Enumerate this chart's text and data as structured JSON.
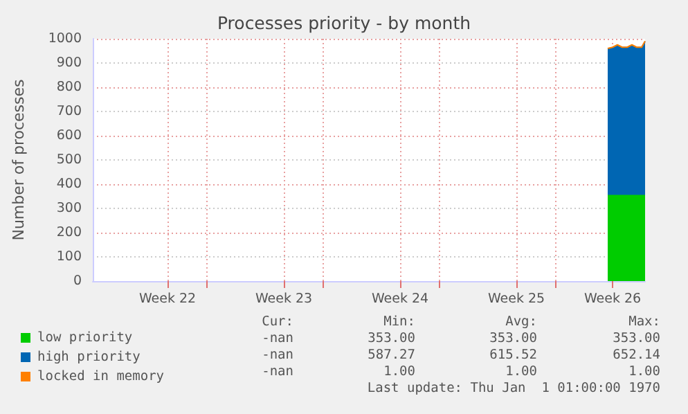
{
  "chart_data": {
    "type": "area",
    "stacked": true,
    "title": "Processes priority - by month",
    "ylabel": "Number of processes",
    "x": [
      "--06-27T04:00",
      "--06-27T11:00",
      "--06-27T18:00",
      "--06-28T01:00",
      "--06-28T08:00",
      "--06-28T15:00",
      "--06-28T22:00",
      "--06-29T05:00",
      "--06-29T10:00"
    ],
    "series": [
      {
        "name": "low priority",
        "color": "#00cc00",
        "values": [
          353,
          353,
          353,
          353,
          353,
          353,
          353,
          353,
          353
        ]
      },
      {
        "name": "high priority",
        "color": "#0066b3",
        "values": [
          606,
          611,
          621,
          611,
          611,
          621,
          611,
          611,
          636
        ]
      },
      {
        "name": "locked in memory",
        "color": "#ff8000",
        "values": [
          1,
          1,
          1,
          1,
          1,
          1,
          1,
          1,
          1
        ]
      }
    ],
    "xlim": [
      "--05-27T04:00",
      "--06-29T10:00"
    ],
    "xticks": [
      {
        "value": "--05-31T16:00",
        "label": "Week 22"
      },
      {
        "value": "--06-03",
        "label": null
      },
      {
        "value": "--06-07T16:00",
        "label": "Week 23"
      },
      {
        "value": "--06-10",
        "label": null
      },
      {
        "value": "--06-14T16:00",
        "label": "Week 24"
      },
      {
        "value": "--06-17",
        "label": null
      },
      {
        "value": "--06-21T16:00",
        "label": "Week 25"
      },
      {
        "value": "--06-24",
        "label": null
      },
      {
        "value": "--06-27T11:00",
        "label": "Week 26"
      }
    ],
    "ylim": [
      0,
      1000
    ],
    "yticks": [
      0,
      100,
      200,
      300,
      400,
      500,
      600,
      700,
      800,
      900,
      1000
    ],
    "grid": true,
    "legend": "bottom left",
    "marker": "none",
    "annotations": [
      "Cur:",
      "Min:",
      "Avg:",
      "Max:",
      "-nan",
      "353.00",
      "353.00",
      "353.00",
      "-nan",
      "587.27",
      "615.52",
      "652.14",
      "-nan",
      "1.00",
      "1.00",
      "1.00",
      "Last update: Thu Jan  1 01:00:00 1970"
    ]
  }
}
